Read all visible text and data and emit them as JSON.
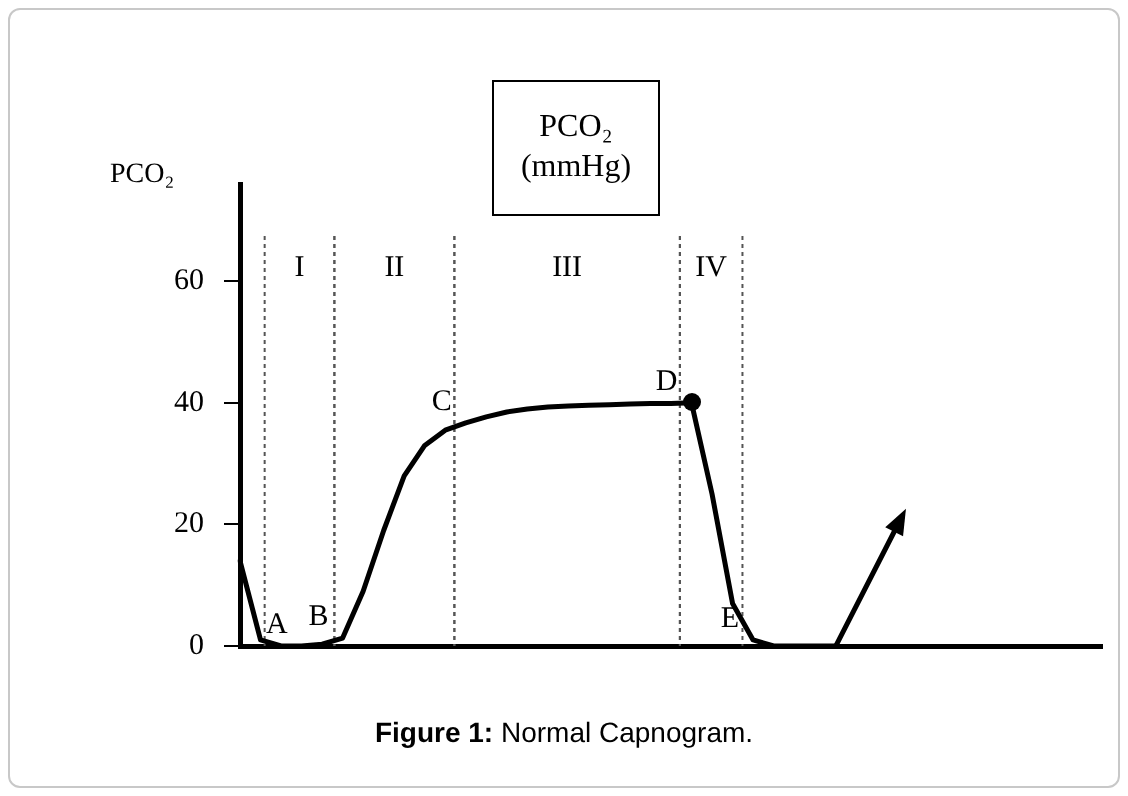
{
  "chart_data": {
    "type": "line",
    "title": "PCO₂ (mmHg)",
    "ylabel": "PCO₂",
    "ylim": [
      0,
      76
    ],
    "yticks": [
      0,
      20,
      40,
      60
    ],
    "tick_labels": "y",
    "marker": "none",
    "categories": [
      null,
      null,
      null,
      null,
      null,
      null,
      null,
      null,
      null,
      null,
      null,
      null,
      null,
      null,
      null,
      null,
      null,
      null,
      null,
      null,
      null,
      null,
      null,
      null,
      null,
      null,
      null,
      null,
      null,
      null,
      null,
      null,
      null,
      null,
      null,
      null,
      null,
      null,
      null,
      null,
      null,
      null,
      null
    ],
    "series": [
      {
        "color": "#000000",
        "values": [
          14,
          1,
          0,
          0,
          0.3,
          1.3,
          9,
          19,
          28,
          33,
          35.5,
          36.7,
          37.7,
          38.5,
          39,
          39.3,
          39.5,
          39.6,
          39.7,
          39.8,
          39.9,
          39.9,
          40,
          25,
          7,
          1,
          0,
          0,
          0,
          0,
          null,
          null,
          null,
          null,
          null,
          null,
          null,
          null,
          null,
          null,
          null,
          null,
          null
        ],
        "value_labels": [
          null,
          null,
          null,
          "A",
          null,
          "B",
          null,
          null,
          null,
          null,
          null,
          "C",
          null,
          null,
          null,
          null,
          null,
          null,
          null,
          null,
          null,
          null,
          "D",
          null,
          null,
          "E",
          null,
          null,
          null,
          null,
          null,
          null,
          null,
          null,
          null,
          null,
          null,
          null,
          null,
          null,
          null,
          null,
          null
        ]
      }
    ],
    "annotations": [
      "I",
      "II",
      "III",
      "IV",
      "Figure 1: Normal Capnogram."
    ]
  }
}
